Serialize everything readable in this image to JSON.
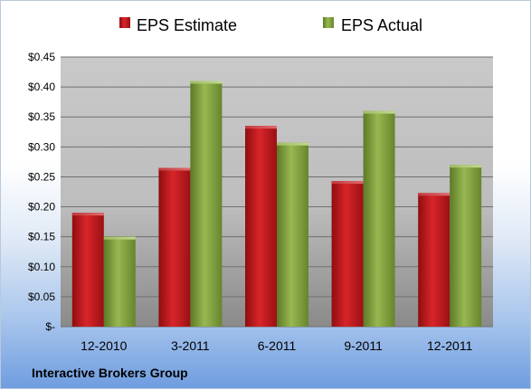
{
  "chart_data": {
    "type": "bar",
    "categories": [
      "12-2010",
      "3-2011",
      "6-2011",
      "9-2011",
      "12-2011"
    ],
    "series": [
      {
        "name": "EPS Estimate",
        "color": "#c4171c",
        "values": [
          0.19,
          0.265,
          0.335,
          0.243,
          0.223
        ]
      },
      {
        "name": "EPS Actual",
        "color": "#7e9f3a",
        "values": [
          0.15,
          0.41,
          0.307,
          0.36,
          0.27
        ]
      }
    ],
    "ylim": [
      0,
      0.45
    ],
    "yticks": [
      0,
      0.05,
      0.1,
      0.15,
      0.2,
      0.25,
      0.3,
      0.35,
      0.4,
      0.45
    ],
    "ytick_labels": [
      "$-",
      "$0.05",
      "$0.10",
      "$0.15",
      "$0.20",
      "$0.25",
      "$0.30",
      "$0.35",
      "$0.40",
      "$0.45"
    ],
    "grid": true,
    "legend_position": "top"
  },
  "footer": {
    "company": "Interactive Brokers Group"
  }
}
